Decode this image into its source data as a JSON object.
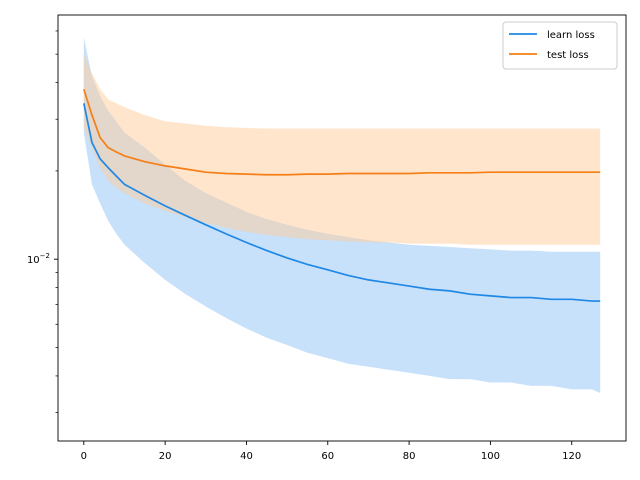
{
  "chart_data": {
    "type": "line",
    "title": "",
    "xlabel": "",
    "ylabel": "",
    "xlim": [
      -6.35,
      133.35
    ],
    "ylim": [
      0.0024,
      0.068
    ],
    "yscale": "log",
    "grid": false,
    "legend_position": "top-right",
    "xticks": [
      0,
      20,
      40,
      60,
      80,
      100,
      120
    ],
    "xtick_labels": [
      "0",
      "20",
      "40",
      "60",
      "80",
      "100",
      "120"
    ],
    "yticks_major": [
      0.01
    ],
    "ytick_labels": [
      "10^-2"
    ],
    "yticks_minor": [
      0.003,
      0.004,
      0.005,
      0.006,
      0.007,
      0.008,
      0.009,
      0.02,
      0.03,
      0.04,
      0.05,
      0.06
    ],
    "series": [
      {
        "name": "learn loss",
        "color": "#1f88e5",
        "band_color": "#90c4f7",
        "x": [
          0,
          2,
          4,
          6,
          8,
          10,
          15,
          20,
          25,
          30,
          35,
          40,
          45,
          50,
          55,
          60,
          65,
          70,
          75,
          80,
          85,
          90,
          95,
          100,
          105,
          110,
          115,
          120,
          125,
          127
        ],
        "mean": [
          0.034,
          0.025,
          0.022,
          0.0205,
          0.0192,
          0.018,
          0.0165,
          0.0152,
          0.0141,
          0.0131,
          0.0122,
          0.0114,
          0.0107,
          0.0101,
          0.0096,
          0.0092,
          0.0088,
          0.0085,
          0.0083,
          0.0081,
          0.0079,
          0.0078,
          0.0076,
          0.0075,
          0.0074,
          0.0074,
          0.0073,
          0.0073,
          0.0072,
          0.0072
        ],
        "upper": [
          0.057,
          0.042,
          0.036,
          0.032,
          0.0295,
          0.027,
          0.024,
          0.021,
          0.0185,
          0.0168,
          0.0156,
          0.0145,
          0.0137,
          0.0131,
          0.0126,
          0.0122,
          0.0119,
          0.0116,
          0.0114,
          0.0112,
          0.0111,
          0.011,
          0.0109,
          0.0108,
          0.0107,
          0.0107,
          0.0106,
          0.0106,
          0.0106,
          0.0106
        ],
        "lower": [
          0.027,
          0.018,
          0.0155,
          0.0135,
          0.0122,
          0.0112,
          0.0097,
          0.0085,
          0.0076,
          0.0069,
          0.0063,
          0.0058,
          0.0054,
          0.0051,
          0.0048,
          0.0046,
          0.0044,
          0.0043,
          0.0042,
          0.0041,
          0.004,
          0.0039,
          0.0039,
          0.0038,
          0.0038,
          0.0037,
          0.0037,
          0.0036,
          0.0036,
          0.0035
        ]
      },
      {
        "name": "test loss",
        "color": "#f57f17",
        "band_color": "#ffcb9a",
        "x": [
          0,
          2,
          4,
          6,
          8,
          10,
          15,
          20,
          25,
          30,
          35,
          40,
          45,
          50,
          55,
          60,
          65,
          70,
          75,
          80,
          85,
          90,
          95,
          100,
          105,
          110,
          115,
          120,
          125,
          127
        ],
        "mean": [
          0.038,
          0.031,
          0.026,
          0.024,
          0.0232,
          0.0225,
          0.0215,
          0.0208,
          0.0203,
          0.0198,
          0.0196,
          0.0195,
          0.0194,
          0.0194,
          0.0195,
          0.0195,
          0.0196,
          0.0196,
          0.0196,
          0.0196,
          0.0197,
          0.0197,
          0.0197,
          0.0198,
          0.0198,
          0.0198,
          0.0198,
          0.0198,
          0.0198,
          0.0198
        ],
        "upper": [
          0.05,
          0.043,
          0.038,
          0.035,
          0.034,
          0.033,
          0.031,
          0.0295,
          0.029,
          0.0285,
          0.0282,
          0.028,
          0.0279,
          0.0279,
          0.0279,
          0.0279,
          0.0279,
          0.0279,
          0.0279,
          0.0279,
          0.0279,
          0.0279,
          0.0279,
          0.0279,
          0.0279,
          0.0279,
          0.0279,
          0.0279,
          0.0279,
          0.0279
        ],
        "lower": [
          0.028,
          0.024,
          0.0205,
          0.0185,
          0.0175,
          0.0168,
          0.0155,
          0.0146,
          0.0139,
          0.0133,
          0.0128,
          0.0124,
          0.0121,
          0.0119,
          0.0117,
          0.0116,
          0.0115,
          0.0114,
          0.0114,
          0.0113,
          0.0113,
          0.0113,
          0.0112,
          0.0112,
          0.0112,
          0.0112,
          0.0112,
          0.0112,
          0.0112,
          0.0112
        ]
      }
    ]
  }
}
